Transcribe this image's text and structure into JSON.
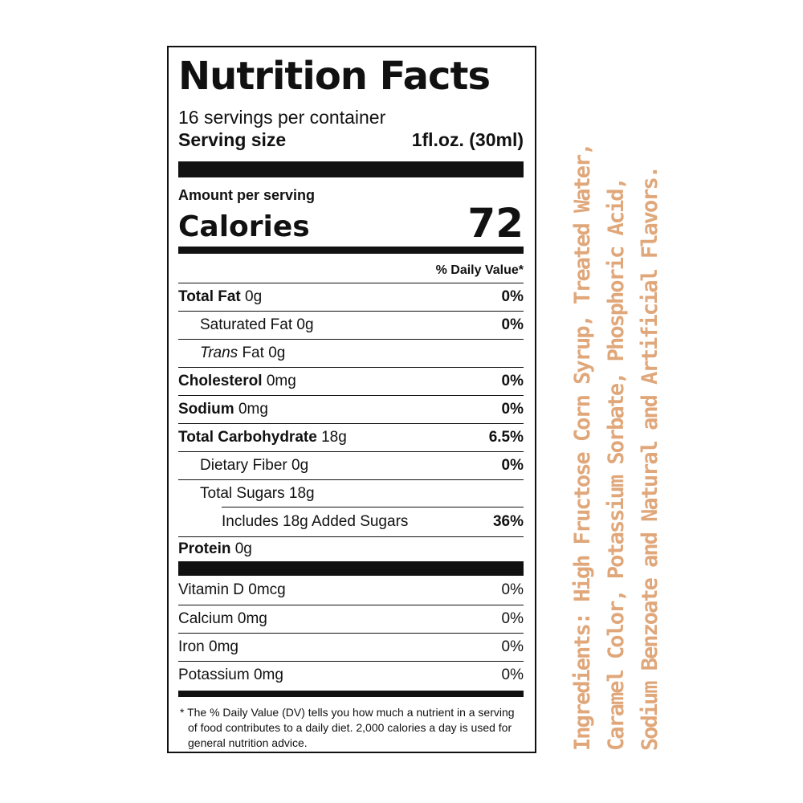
{
  "label": {
    "title": "Nutrition Facts",
    "servings_per_container": "16 servings per container",
    "serving_size_label": "Serving size",
    "serving_size_value": "1fl.oz. (30ml)",
    "amount_per_serving": "Amount per serving",
    "calories_label": "Calories",
    "calories_value": "72",
    "dv_header": "% Daily Value*",
    "nutrients": {
      "total_fat": {
        "name": "Total Fat",
        "amount": "0g",
        "dv": "0%"
      },
      "saturated_fat": {
        "name": "Saturated Fat",
        "amount": "0g",
        "dv": "0%"
      },
      "trans_fat": {
        "name": "Trans",
        "name2": "Fat",
        "amount": "0g"
      },
      "cholesterol": {
        "name": "Cholesterol",
        "amount": "0mg",
        "dv": "0%"
      },
      "sodium": {
        "name": "Sodium",
        "amount": "0mg",
        "dv": "0%"
      },
      "total_carbohydrate": {
        "name": "Total Carbohydrate",
        "amount": "18g",
        "dv": "6.5%"
      },
      "dietary_fiber": {
        "name": "Dietary Fiber",
        "amount": "0g",
        "dv": "0%"
      },
      "total_sugars": {
        "name": "Total Sugars",
        "amount": "18g"
      },
      "added_sugars": {
        "name": "Includes 18g Added Sugars",
        "dv": "36%"
      },
      "protein": {
        "name": "Protein",
        "amount": "0g"
      }
    },
    "vitamins": [
      {
        "name": "Vitamin D 0mcg",
        "dv": "0%"
      },
      {
        "name": "Calcium 0mg",
        "dv": "0%"
      },
      {
        "name": "Iron 0mg",
        "dv": "0%"
      },
      {
        "name": "Potassium 0mg",
        "dv": "0%"
      }
    ],
    "footnote": "* The % Daily Value (DV) tells you how much a nutrient in a serving of food contributes to a daily diet. 2,000 calories a day is used for general nutrition advice."
  },
  "ingredients": {
    "line1": "Ingredients: High Fructose Corn Syrup, Treated Water,",
    "line2": "Caramel Color, Potassium Sorbate, Phosphoric Acid,",
    "line3": "Sodium Benzoate and Natural and Artificial Flavors.",
    "color": "#e0a77a"
  }
}
